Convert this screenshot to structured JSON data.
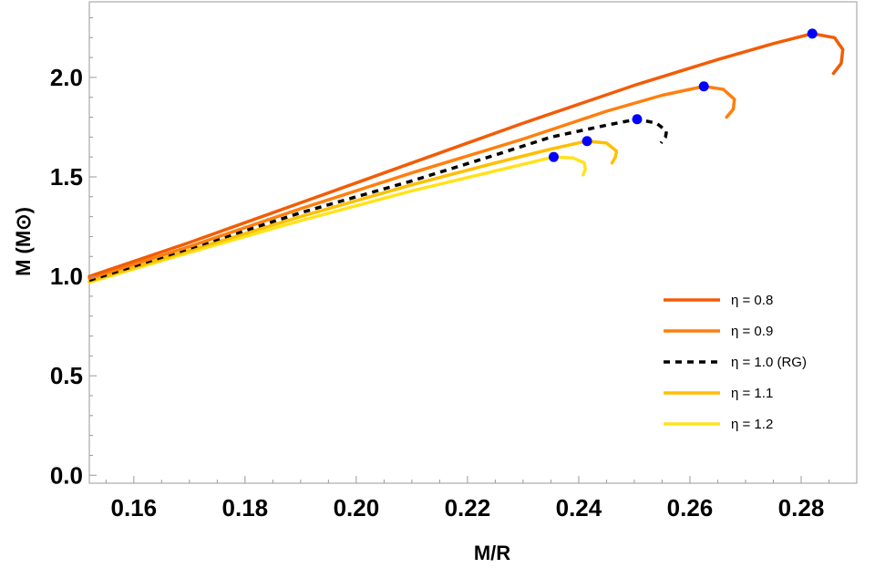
{
  "chart_data": {
    "type": "line",
    "xlabel": "M/R",
    "ylabel": "M (M⊙)",
    "xlim": [
      0.152,
      0.29
    ],
    "ylim": [
      -0.04,
      2.38
    ],
    "xticks": [
      0.16,
      0.18,
      0.2,
      0.22,
      0.24,
      0.26,
      0.28
    ],
    "xtick_labels": [
      "0.16",
      "0.18",
      "0.20",
      "0.22",
      "0.24",
      "0.26",
      "0.28"
    ],
    "yticks": [
      0.0,
      0.5,
      1.0,
      1.5,
      2.0
    ],
    "ytick_labels": [
      "0.0",
      "0.5",
      "1.0",
      "1.5",
      "2.0"
    ],
    "grid": false,
    "legend_position": "bottom-right",
    "series": [
      {
        "name": "η = 0.8",
        "color": "#F25C05",
        "dashed": false,
        "points": [
          [
            0.152,
            1.0
          ],
          [
            0.17,
            1.17
          ],
          [
            0.19,
            1.37
          ],
          [
            0.21,
            1.57
          ],
          [
            0.23,
            1.77
          ],
          [
            0.25,
            1.96
          ],
          [
            0.265,
            2.09
          ],
          [
            0.275,
            2.17
          ],
          [
            0.282,
            2.22
          ],
          [
            0.286,
            2.2
          ],
          [
            0.2875,
            2.14
          ],
          [
            0.2872,
            2.07
          ],
          [
            0.2858,
            2.02
          ]
        ],
        "max_point": [
          0.282,
          2.22
        ]
      },
      {
        "name": "η = 0.9",
        "color": "#FF7F0E",
        "dashed": false,
        "points": [
          [
            0.152,
            0.99
          ],
          [
            0.17,
            1.15
          ],
          [
            0.19,
            1.34
          ],
          [
            0.21,
            1.52
          ],
          [
            0.23,
            1.69
          ],
          [
            0.245,
            1.83
          ],
          [
            0.255,
            1.91
          ],
          [
            0.2625,
            1.955
          ],
          [
            0.266,
            1.94
          ],
          [
            0.268,
            1.89
          ],
          [
            0.2678,
            1.84
          ],
          [
            0.2666,
            1.8
          ]
        ],
        "max_point": [
          0.2625,
          1.955
        ]
      },
      {
        "name": "η = 1.0 (RG)",
        "color": "#000000",
        "dashed": true,
        "points": [
          [
            0.152,
            0.98
          ],
          [
            0.17,
            1.14
          ],
          [
            0.19,
            1.32
          ],
          [
            0.21,
            1.48
          ],
          [
            0.225,
            1.61
          ],
          [
            0.235,
            1.7
          ],
          [
            0.245,
            1.76
          ],
          [
            0.2505,
            1.79
          ],
          [
            0.254,
            1.77
          ],
          [
            0.2558,
            1.73
          ],
          [
            0.2556,
            1.7
          ],
          [
            0.2548,
            1.67
          ]
        ],
        "max_point": [
          0.2505,
          1.79
        ]
      },
      {
        "name": "η = 1.1",
        "color": "#FFBF00",
        "dashed": false,
        "points": [
          [
            0.152,
            0.975
          ],
          [
            0.17,
            1.13
          ],
          [
            0.19,
            1.3
          ],
          [
            0.21,
            1.46
          ],
          [
            0.225,
            1.57
          ],
          [
            0.235,
            1.64
          ],
          [
            0.2415,
            1.68
          ],
          [
            0.245,
            1.67
          ],
          [
            0.2468,
            1.63
          ],
          [
            0.2466,
            1.6
          ],
          [
            0.246,
            1.57
          ]
        ],
        "max_point": [
          0.2415,
          1.68
        ]
      },
      {
        "name": "η = 1.2",
        "color": "#FFE31A",
        "dashed": false,
        "points": [
          [
            0.152,
            0.97
          ],
          [
            0.17,
            1.12
          ],
          [
            0.19,
            1.28
          ],
          [
            0.21,
            1.43
          ],
          [
            0.225,
            1.53
          ],
          [
            0.2355,
            1.6
          ],
          [
            0.239,
            1.595
          ],
          [
            0.241,
            1.57
          ],
          [
            0.2412,
            1.54
          ],
          [
            0.2408,
            1.51
          ]
        ],
        "max_point": [
          0.2355,
          1.6
        ]
      }
    ]
  }
}
